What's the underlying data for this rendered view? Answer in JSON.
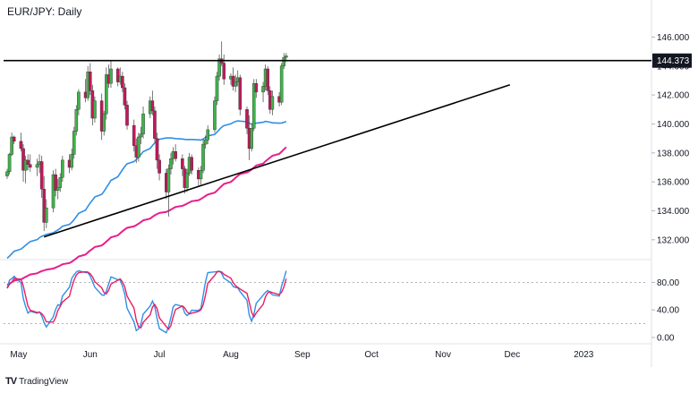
{
  "title": "EUR/JPY: Daily",
  "brand": {
    "logo": "TV",
    "name": "TradingView"
  },
  "colors": {
    "bull": "#26a69a",
    "bull_fill": "#3fb24a",
    "bear": "#c2185b",
    "sma100": "#2f8fe6",
    "sma200": "#e91e8c",
    "stoch_k": "#2f8fe6",
    "stoch_d": "#e91e63",
    "resistance": "#000000",
    "trendline": "#000000"
  },
  "chart_data": [
    {
      "type": "candlestick",
      "name": "price-panel",
      "x_ticks": [
        "May",
        "Jun",
        "Jul",
        "Aug",
        "Sep",
        "Oct",
        "Nov",
        "Dec",
        "2023"
      ],
      "y_ticks": [
        "146.000",
        "144.000",
        "142.000",
        "140.000",
        "138.000",
        "136.000",
        "134.000",
        "132.000"
      ],
      "ylim": [
        131.0,
        147.2
      ],
      "resistance_level": 144.373,
      "resistance_label": "144.373",
      "trendline": {
        "from": [
          "2022-05-12",
          132.2
        ],
        "to": [
          "2022-11-30",
          142.7
        ]
      },
      "candles_start": "2022-04-26",
      "candles": [
        [
          136.4,
          136.9,
          136.2,
          136.7
        ],
        [
          136.7,
          138.0,
          136.5,
          137.9
        ],
        [
          137.9,
          139.4,
          137.8,
          139.1
        ],
        [
          139.1,
          139.2,
          138.6,
          138.8
        ],
        [
          138.8,
          139.4,
          138.1,
          138.3
        ],
        [
          138.3,
          138.6,
          136.0,
          136.8
        ],
        [
          136.8,
          137.8,
          135.9,
          137.5
        ],
        [
          137.5,
          137.9,
          136.8,
          137.2
        ],
        [
          137.2,
          137.9,
          136.7,
          137.0
        ],
        [
          137.0,
          137.6,
          136.4,
          137.2
        ],
        [
          137.2,
          137.9,
          136.6,
          137.4
        ],
        [
          137.4,
          137.8,
          134.9,
          135.5
        ],
        [
          135.5,
          136.4,
          132.6,
          133.2
        ],
        [
          133.2,
          134.8,
          132.8,
          134.2
        ],
        [
          134.2,
          136.8,
          133.9,
          136.5
        ],
        [
          136.5,
          136.9,
          135.0,
          135.4
        ],
        [
          135.4,
          136.2,
          134.8,
          135.6
        ],
        [
          135.6,
          136.6,
          135.3,
          136.3
        ],
        [
          136.3,
          137.8,
          136.0,
          137.5
        ],
        [
          137.5,
          137.9,
          136.6,
          137.0
        ],
        [
          137.0,
          138.3,
          136.8,
          137.9
        ],
        [
          137.9,
          139.8,
          137.6,
          139.5
        ],
        [
          139.5,
          141.3,
          139.2,
          141.0
        ],
        [
          141.0,
          142.4,
          140.6,
          142.2
        ],
        [
          142.2,
          143.1,
          141.5,
          141.8
        ],
        [
          141.8,
          144.0,
          141.6,
          143.6
        ],
        [
          143.6,
          144.2,
          142.0,
          142.3
        ],
        [
          142.3,
          142.7,
          139.9,
          140.4
        ],
        [
          140.4,
          141.9,
          140.1,
          141.6
        ],
        [
          141.6,
          142.1,
          138.9,
          139.5
        ],
        [
          139.5,
          140.9,
          139.2,
          140.7
        ],
        [
          140.7,
          143.9,
          140.3,
          143.4
        ],
        [
          143.4,
          144.1,
          142.5,
          142.8
        ],
        [
          142.8,
          144.4,
          142.5,
          143.8
        ],
        [
          143.8,
          143.9,
          142.6,
          142.9
        ],
        [
          142.9,
          143.9,
          142.7,
          143.3
        ],
        [
          143.3,
          143.6,
          142.2,
          142.5
        ],
        [
          142.5,
          142.8,
          141.0,
          141.3
        ],
        [
          141.3,
          141.6,
          139.6,
          139.9
        ],
        [
          139.9,
          140.3,
          138.1,
          138.5
        ],
        [
          138.5,
          139.0,
          137.3,
          137.7
        ],
        [
          137.7,
          139.4,
          137.4,
          139.1
        ],
        [
          139.1,
          139.8,
          138.6,
          139.3
        ],
        [
          139.3,
          141.2,
          139.0,
          140.7
        ],
        [
          140.7,
          141.9,
          140.4,
          141.6
        ],
        [
          141.6,
          142.3,
          140.6,
          140.9
        ],
        [
          140.9,
          141.2,
          138.7,
          139.0
        ],
        [
          139.0,
          139.4,
          136.9,
          137.5
        ],
        [
          137.5,
          137.9,
          136.1,
          136.6
        ],
        [
          136.6,
          136.9,
          134.8,
          135.3
        ],
        [
          135.3,
          137.2,
          133.6,
          136.9
        ],
        [
          136.9,
          138.0,
          136.5,
          137.6
        ],
        [
          137.6,
          138.4,
          137.2,
          138.1
        ],
        [
          138.1,
          138.6,
          137.4,
          137.6
        ],
        [
          137.6,
          137.9,
          136.4,
          136.9
        ],
        [
          136.9,
          137.1,
          135.2,
          135.6
        ],
        [
          135.6,
          136.9,
          135.3,
          136.6
        ],
        [
          136.6,
          138.0,
          136.4,
          137.7
        ],
        [
          137.7,
          137.9,
          136.5,
          136.8
        ],
        [
          136.8,
          137.0,
          135.7,
          136.2
        ],
        [
          136.2,
          137.1,
          135.8,
          136.8
        ],
        [
          136.8,
          139.0,
          136.6,
          138.6
        ],
        [
          138.6,
          139.2,
          138.3,
          138.9
        ],
        [
          138.9,
          139.9,
          138.6,
          139.6
        ],
        [
          139.6,
          141.9,
          139.4,
          141.6
        ],
        [
          141.6,
          143.6,
          141.3,
          143.3
        ],
        [
          143.3,
          144.8,
          143.0,
          144.5
        ],
        [
          144.5,
          145.7,
          144.0,
          144.2
        ],
        [
          144.2,
          144.8,
          142.7,
          143.1
        ],
        [
          143.1,
          143.5,
          142.7,
          143.3
        ],
        [
          143.3,
          143.9,
          142.3,
          142.6
        ],
        [
          142.6,
          143.4,
          142.2,
          142.9
        ],
        [
          142.9,
          143.7,
          142.6,
          143.2
        ],
        [
          143.2,
          143.4,
          140.6,
          141.0
        ],
        [
          141.0,
          141.2,
          139.3,
          139.7
        ],
        [
          139.7,
          140.6,
          137.5,
          138.3
        ],
        [
          138.3,
          140.0,
          138.1,
          139.7
        ],
        [
          139.7,
          143.1,
          139.5,
          142.8
        ],
        [
          142.8,
          143.1,
          141.8,
          142.2
        ],
        [
          142.2,
          142.9,
          141.5,
          142.6
        ],
        [
          142.6,
          144.1,
          142.3,
          143.8
        ],
        [
          143.8,
          144.0,
          142.0,
          142.3
        ],
        [
          142.3,
          142.6,
          140.7,
          141.0
        ],
        [
          141.0,
          142.3,
          140.6,
          141.9
        ],
        [
          141.9,
          142.2,
          141.2,
          141.5
        ],
        [
          141.5,
          144.2,
          141.3,
          144.0
        ],
        [
          144.0,
          144.9,
          143.8,
          144.6
        ],
        [
          144.6,
          144.9,
          144.3,
          144.7
        ]
      ]
    },
    {
      "type": "line",
      "name": "stochastic-panel",
      "y_ticks": [
        "80.00",
        "40.00",
        "0.00"
      ],
      "ylim": [
        0,
        100
      ],
      "levels": [
        80,
        20
      ]
    }
  ]
}
